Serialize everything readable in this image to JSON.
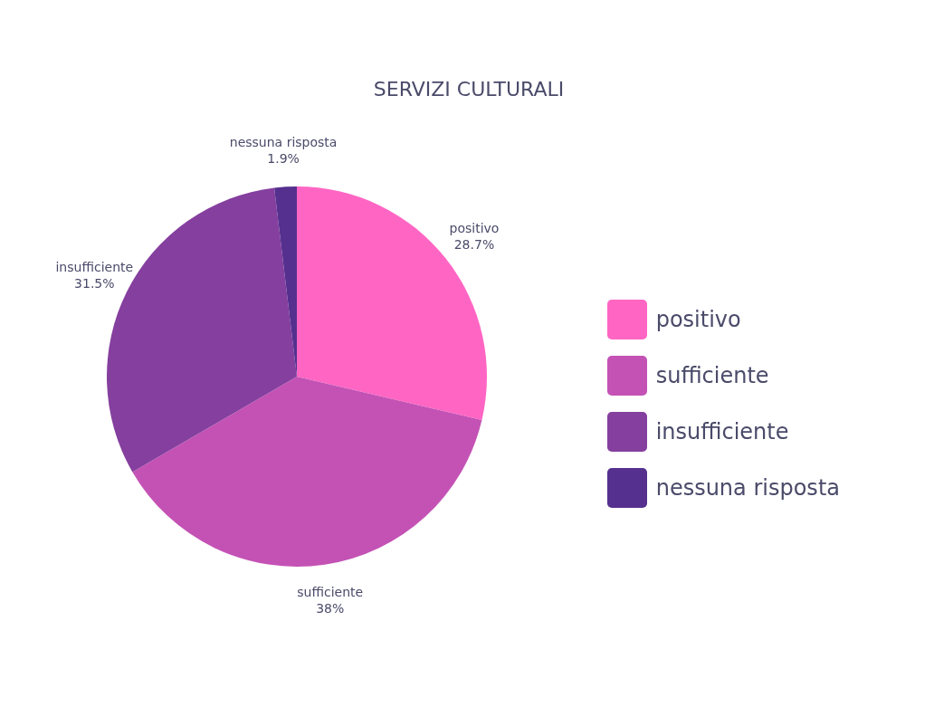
{
  "chart_data": {
    "type": "pie",
    "title": "SERVIZI CULTURALI",
    "categories": [
      "positivo",
      "sufficiente",
      "insufficiente",
      "nessuna risposta"
    ],
    "values": [
      28.7,
      38,
      31.5,
      1.9
    ],
    "value_labels": [
      "28.7%",
      "38%",
      "31.5%",
      "1.9%"
    ],
    "colors": [
      "#ff66c4",
      "#c452b5",
      "#853f9e",
      "#55308f"
    ],
    "legend": "right"
  }
}
